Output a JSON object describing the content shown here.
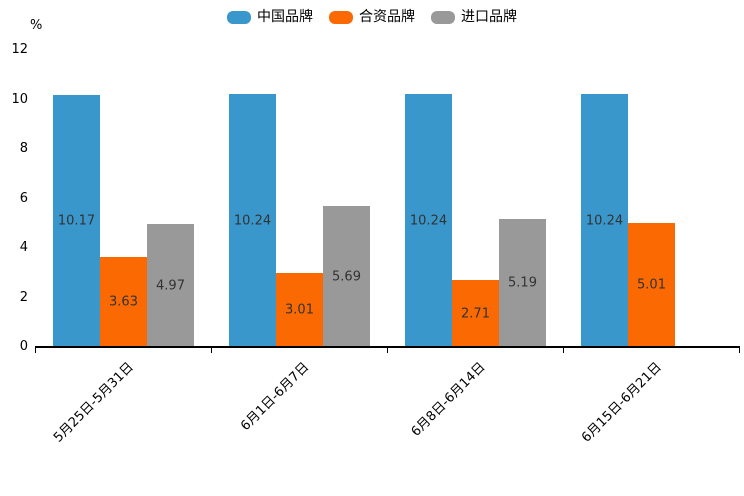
{
  "chart_data": {
    "type": "bar",
    "title": "",
    "unit_label": "%",
    "categories": [
      "5月25日-5月31日",
      "6月1日-6月7日",
      "6月8日-6月14日",
      "6月15日-6月21日"
    ],
    "series": [
      {
        "name": "中国品牌",
        "color": "#3a97cc",
        "values": [
          10.17,
          10.24,
          10.24,
          10.24
        ]
      },
      {
        "name": "合资品牌",
        "color": "#fb6a02",
        "values": [
          3.63,
          3.01,
          2.71,
          5.01
        ]
      },
      {
        "name": "进口品牌",
        "color": "#999999",
        "values": [
          4.97,
          5.69,
          5.19,
          null
        ]
      }
    ],
    "ylim": [
      0,
      12
    ],
    "yticks": [
      0,
      2,
      4,
      6,
      8,
      10,
      12
    ],
    "legend_position": "top-center",
    "grid": false,
    "value_label_position": "inside-center",
    "x_label_rotation_deg": 45
  },
  "colors": {
    "background": "#ffffff",
    "axis": "#000000",
    "value_label": "#333333",
    "tick_label": "#000000"
  }
}
